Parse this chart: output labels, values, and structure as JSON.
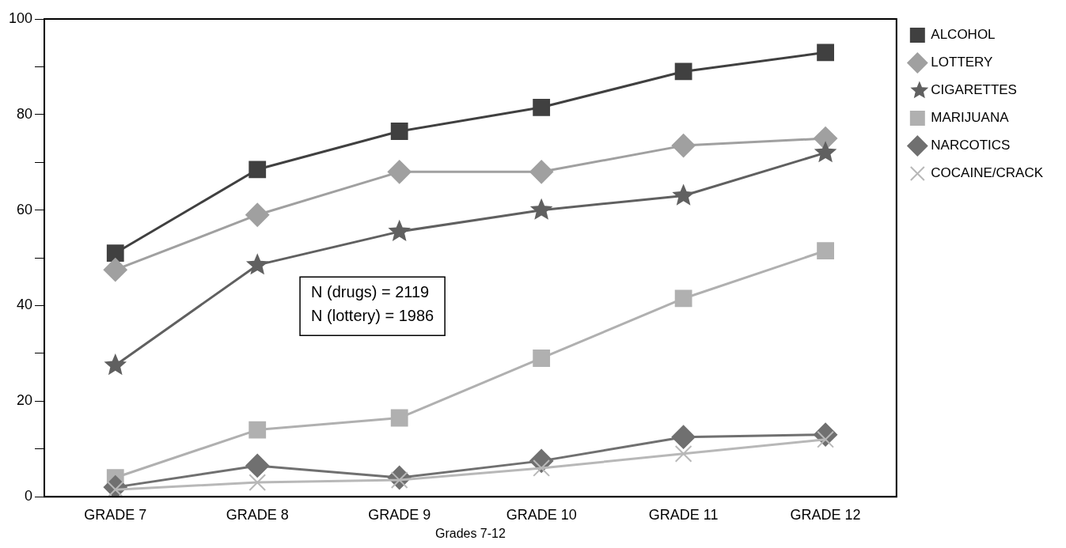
{
  "chart_data": {
    "type": "line",
    "xlabel": "Grades 7-12",
    "categories": [
      "GRADE 7",
      "GRADE 8",
      "GRADE 9",
      "GRADE 10",
      "GRADE 11",
      "GRADE 12"
    ],
    "series": [
      {
        "name": "ALCOHOL",
        "color": "#404040",
        "marker": "square",
        "values": [
          51,
          68.5,
          76.5,
          81.5,
          89,
          93
        ]
      },
      {
        "name": "LOTTERY",
        "color": "#a0a0a0",
        "marker": "diamond",
        "values": [
          47.5,
          59,
          68,
          68,
          73.5,
          75
        ]
      },
      {
        "name": "CIGARETTES",
        "color": "#606060",
        "marker": "star",
        "values": [
          27.5,
          48.5,
          55.5,
          60,
          63,
          72
        ]
      },
      {
        "name": "MARIJUANA",
        "color": "#b0b0b0",
        "marker": "square",
        "values": [
          4,
          14,
          16.5,
          29,
          41.5,
          51.5
        ]
      },
      {
        "name": "NARCOTICS",
        "color": "#707070",
        "marker": "diamond",
        "values": [
          2,
          6.5,
          4,
          7.5,
          12.5,
          13
        ]
      },
      {
        "name": "COCAINE/CRACK",
        "color": "#b8b8b8",
        "marker": "cross",
        "values": [
          1.5,
          3,
          3.5,
          6,
          9,
          12
        ]
      }
    ],
    "ylim": [
      0,
      100
    ],
    "yticks": [
      0,
      {
        "value": 10,
        "label": null
      },
      20,
      {
        "value": 30,
        "label": null
      },
      40,
      {
        "value": 50,
        "label": null
      },
      60,
      {
        "value": 70,
        "label": null
      },
      80,
      {
        "value": 90,
        "label": null
      },
      100
    ],
    "grid": false,
    "legend": "top right",
    "line_style": "solid",
    "annotations": [
      "N (drugs) = 2119\nN (lottery) = 1986"
    ]
  }
}
